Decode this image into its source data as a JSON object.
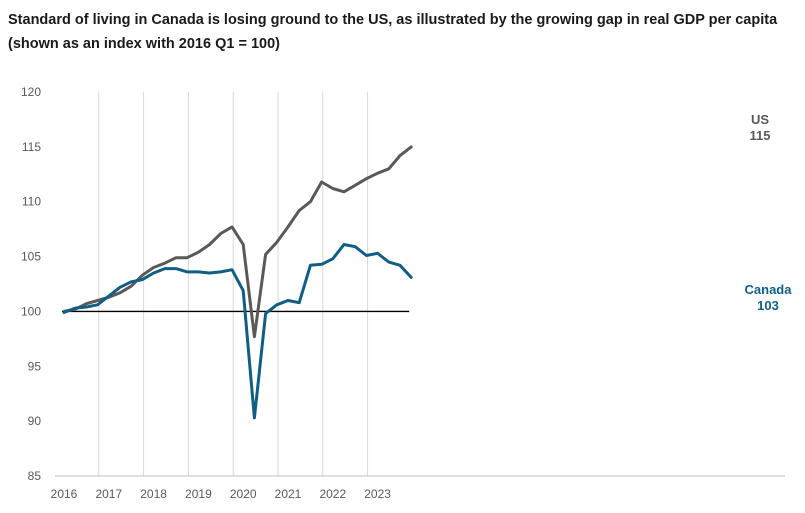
{
  "chart_data": {
    "type": "line",
    "title": "Standard of living in Canada is losing ground to the US, as illustrated by the growing gap in real GDP per capita",
    "subtitle": "(shown as an index with 2016 Q1 = 100)",
    "xlabel": "",
    "ylabel": "",
    "ylim": [
      85,
      120
    ],
    "yticks": [
      "85",
      "90",
      "95",
      "100",
      "105",
      "110",
      "115",
      "120"
    ],
    "xticks": [
      "2016",
      "2017",
      "2018",
      "2019",
      "2020",
      "2021",
      "2022",
      "2023"
    ],
    "grid": "vertical",
    "reference_line": 100,
    "series": [
      {
        "name": "US",
        "end_value_label": "115",
        "color": "#595959",
        "values": [
          100.0,
          100.2,
          100.7,
          101.0,
          101.3,
          101.7,
          102.3,
          103.3,
          104.0,
          104.4,
          104.9,
          104.9,
          105.4,
          106.1,
          107.1,
          107.7,
          106.1,
          97.7,
          105.2,
          106.3,
          107.7,
          109.2,
          110.0,
          111.8,
          111.2,
          110.9,
          111.5,
          112.1,
          112.6,
          113.0,
          114.2,
          115.0
        ]
      },
      {
        "name": "Canada",
        "end_value_label": "103",
        "color": "#115e85",
        "values": [
          99.9,
          100.3,
          100.4,
          100.6,
          101.4,
          102.2,
          102.7,
          102.9,
          103.5,
          103.9,
          103.9,
          103.6,
          103.6,
          103.5,
          103.6,
          103.8,
          101.9,
          90.3,
          99.8,
          100.6,
          101.0,
          100.8,
          104.2,
          104.3,
          104.8,
          106.1,
          105.9,
          105.1,
          105.3,
          104.5,
          104.2,
          103.1
        ]
      }
    ]
  }
}
